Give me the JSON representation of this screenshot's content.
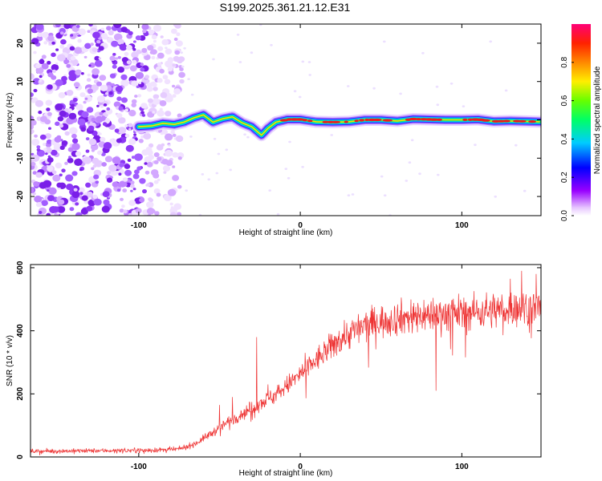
{
  "title": "S199.2025.361.21.12.E31",
  "chart_data": [
    {
      "type": "heatmap",
      "xlabel": "Height of straight line (km)",
      "ylabel": "Frequency (Hz)",
      "xlim": [
        -167,
        149
      ],
      "ylim": [
        -25,
        25
      ],
      "x_ticks": [
        -100,
        0,
        100
      ],
      "y_ticks": [
        -20,
        -10,
        0,
        10,
        20
      ],
      "colorbar": {
        "label": "Normalized spectral amplitude",
        "range": [
          0,
          1
        ],
        "ticks": [
          "0.0",
          "0.2",
          "0.4",
          "0.6",
          "0.8"
        ]
      },
      "noise_region_x": [
        -167,
        -85
      ],
      "ridge": [
        {
          "x": -100,
          "y": -1.8
        },
        {
          "x": -92,
          "y": -1.6
        },
        {
          "x": -85,
          "y": -0.9
        },
        {
          "x": -78,
          "y": -1.2
        },
        {
          "x": -72,
          "y": -0.6
        },
        {
          "x": -66,
          "y": 0.5
        },
        {
          "x": -60,
          "y": 1.3
        },
        {
          "x": -54,
          "y": -0.6
        },
        {
          "x": -48,
          "y": 0.3
        },
        {
          "x": -42,
          "y": 0.8
        },
        {
          "x": -36,
          "y": -0.8
        },
        {
          "x": -30,
          "y": -1.8
        },
        {
          "x": -24,
          "y": -4.0
        },
        {
          "x": -20,
          "y": -2.2
        },
        {
          "x": -15,
          "y": -0.6
        },
        {
          "x": -8,
          "y": 0.1
        },
        {
          "x": 0,
          "y": 0.1
        },
        {
          "x": 10,
          "y": -0.5
        },
        {
          "x": 20,
          "y": -0.6
        },
        {
          "x": 30,
          "y": -0.5
        },
        {
          "x": 40,
          "y": 0.0
        },
        {
          "x": 50,
          "y": 0.0
        },
        {
          "x": 60,
          "y": -0.3
        },
        {
          "x": 70,
          "y": 0.2
        },
        {
          "x": 80,
          "y": 0.1
        },
        {
          "x": 90,
          "y": 0.0
        },
        {
          "x": 100,
          "y": 0.0
        },
        {
          "x": 110,
          "y": 0.1
        },
        {
          "x": 120,
          "y": -0.4
        },
        {
          "x": 130,
          "y": -0.3
        },
        {
          "x": 140,
          "y": -0.4
        },
        {
          "x": 148,
          "y": -0.5
        }
      ]
    },
    {
      "type": "line",
      "xlabel": "Height of straight line (km)",
      "ylabel": "SNR (10 * v/v)",
      "xlim": [
        -167,
        149
      ],
      "ylim": [
        0,
        610
      ],
      "x_ticks": [
        -100,
        0,
        100
      ],
      "y_ticks": [
        0,
        200,
        400,
        600
      ],
      "series": [
        {
          "name": "SNR",
          "color": "#ee3333",
          "trend": [
            {
              "x": -167,
              "y": 18
            },
            {
              "x": -120,
              "y": 20
            },
            {
              "x": -85,
              "y": 22
            },
            {
              "x": -75,
              "y": 25
            },
            {
              "x": -65,
              "y": 42
            },
            {
              "x": -55,
              "y": 75
            },
            {
              "x": -45,
              "y": 110
            },
            {
              "x": -35,
              "y": 140
            },
            {
              "x": -25,
              "y": 170
            },
            {
              "x": -15,
              "y": 200
            },
            {
              "x": -5,
              "y": 240
            },
            {
              "x": 5,
              "y": 285
            },
            {
              "x": 15,
              "y": 330
            },
            {
              "x": 25,
              "y": 375
            },
            {
              "x": 35,
              "y": 405
            },
            {
              "x": 45,
              "y": 425
            },
            {
              "x": 60,
              "y": 440
            },
            {
              "x": 75,
              "y": 450
            },
            {
              "x": 90,
              "y": 455
            },
            {
              "x": 110,
              "y": 460
            },
            {
              "x": 130,
              "y": 470
            },
            {
              "x": 149,
              "y": 475
            }
          ],
          "spikes": [
            {
              "x": -50,
              "y": 165
            },
            {
              "x": -42,
              "y": 190
            },
            {
              "x": -27,
              "y": 380
            },
            {
              "x": -20,
              "y": 230
            },
            {
              "x": 3,
              "y": 330
            },
            {
              "x": 84,
              "y": 210
            },
            {
              "x": 130,
              "y": 565
            },
            {
              "x": 137,
              "y": 590
            },
            {
              "x": 146,
              "y": 580
            }
          ]
        }
      ]
    }
  ]
}
